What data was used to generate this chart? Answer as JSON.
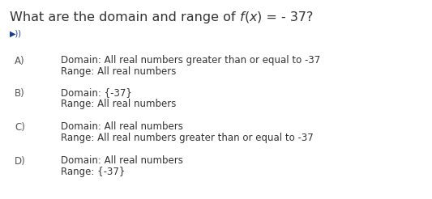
{
  "bg_color": "#ffffff",
  "text_color": "#333333",
  "label_color": "#555555",
  "title_parts": [
    "What are the domain and range of ",
    "f",
    "(",
    "x",
    ") = - 37?"
  ],
  "title_italic": [
    false,
    true,
    false,
    true,
    false
  ],
  "title_fontsize": 11.5,
  "speaker_color": "#1a3a8a",
  "options": [
    {
      "label": "A)",
      "line1": "Domain: All real numbers greater than or equal to -37",
      "line2": "Range: All real numbers"
    },
    {
      "label": "B)",
      "line1": "Domain: {-37}",
      "line2": "Range: All real numbers"
    },
    {
      "label": "C)",
      "line1": "Domain: All real numbers",
      "line2": "Range: All real numbers greater than or equal to -37"
    },
    {
      "label": "D)",
      "line1": "Domain: All real numbers",
      "line2": "Range: {-37}"
    }
  ],
  "option_fontsize": 8.5,
  "fig_width": 5.33,
  "fig_height": 2.46,
  "dpi": 100
}
